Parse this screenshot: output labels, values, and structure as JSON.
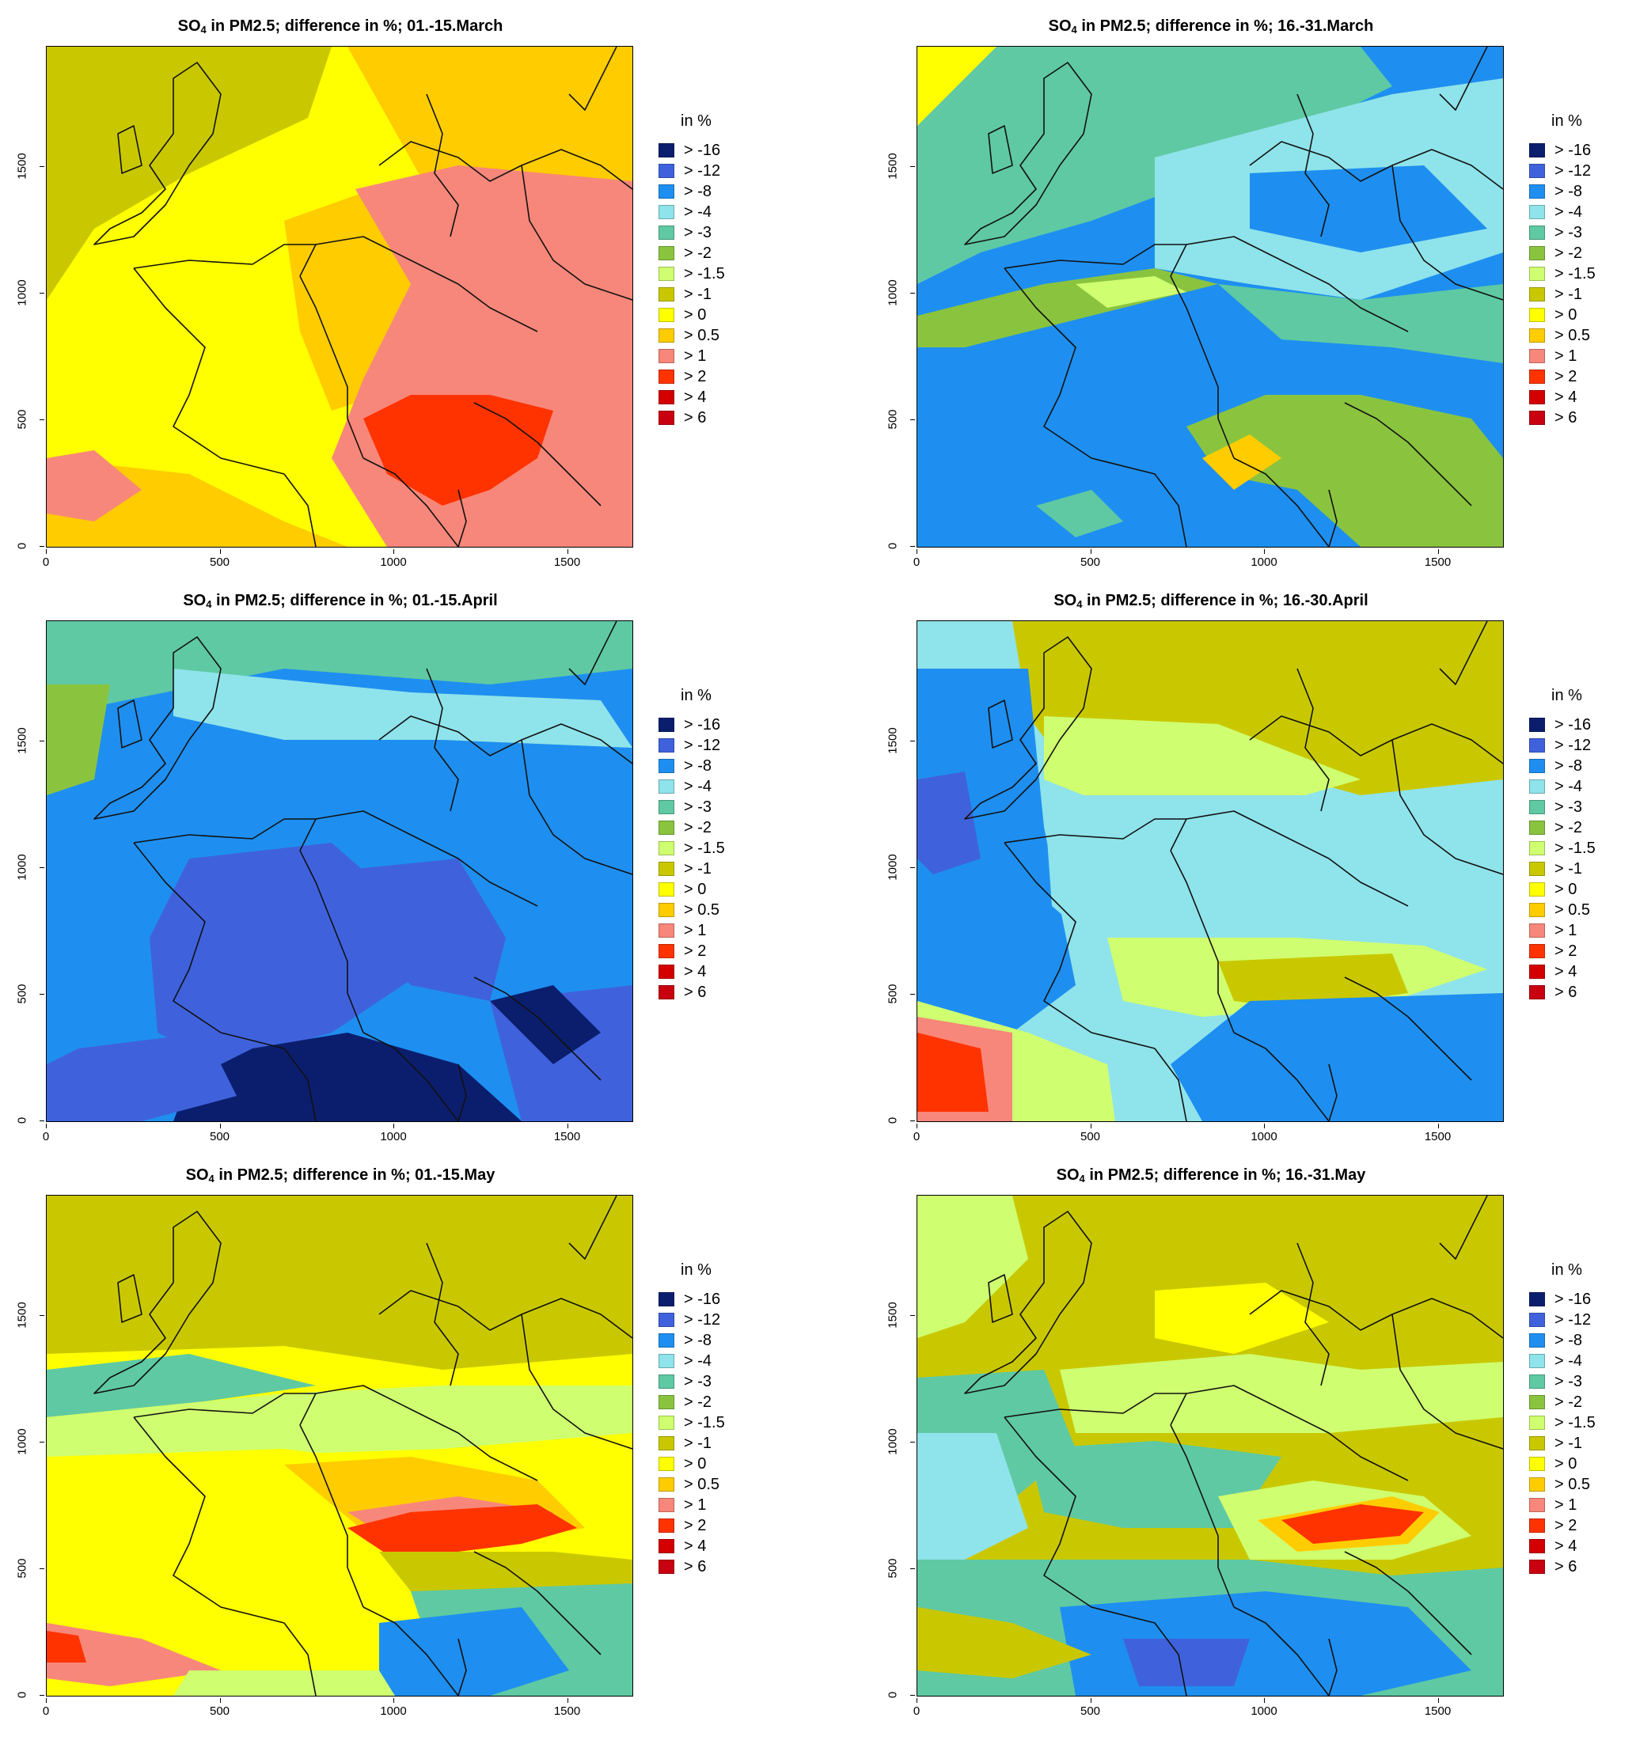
{
  "legend": {
    "title": "in %",
    "classes": [
      {
        "label": "> -16",
        "color": "#0b1e6e"
      },
      {
        "label": "> -12",
        "color": "#3f62dc"
      },
      {
        "label": "> -8",
        "color": "#1e8ff0"
      },
      {
        "label": "> -4",
        "color": "#8fe3ea"
      },
      {
        "label": "> -3",
        "color": "#5fc9a3"
      },
      {
        "label": "> -2",
        "color": "#8ac43f"
      },
      {
        "label": "> -1.5",
        "color": "#cfff70"
      },
      {
        "label": "> -1",
        "color": "#c9c800"
      },
      {
        "label": "> 0",
        "color": "#ffff00"
      },
      {
        "label": "> 0.5",
        "color": "#ffcc00"
      },
      {
        "label": "> 1",
        "color": "#f7877a"
      },
      {
        "label": "> 2",
        "color": "#ff3300"
      },
      {
        "label": "> 4",
        "color": "#d40000"
      },
      {
        "label": "> 6",
        "color": "#c80010"
      }
    ]
  },
  "axes": {
    "x_ticks": [
      "0",
      "500",
      "1000",
      "1500"
    ],
    "y_ticks": [
      "0",
      "500",
      "1000",
      "1500"
    ]
  },
  "panels": [
    {
      "title_prefix": "SO",
      "title_sub": "4",
      "title_rest": "  in PM2.5; difference in %; 01.-15.March",
      "base_color": "#ffff00",
      "dominant": "warm-yellow"
    },
    {
      "title_prefix": "SO",
      "title_sub": "4",
      "title_rest": "  in PM2.5; difference in %; 16.-31.March",
      "base_color": "#1e8ff0",
      "dominant": "blue-cyan"
    },
    {
      "title_prefix": "SO",
      "title_sub": "4",
      "title_rest": "  in PM2.5; difference in %; 01.-15.April",
      "base_color": "#1e8ff0",
      "dominant": "deep-blue"
    },
    {
      "title_prefix": "SO",
      "title_sub": "4",
      "title_rest": "  in PM2.5; difference in %; 16.-30.April",
      "base_color": "#8fe3ea",
      "dominant": "cyan-olive"
    },
    {
      "title_prefix": "SO",
      "title_sub": "4",
      "title_rest": "  in PM2.5; difference in %; 01.-15.May",
      "base_color": "#ffff00",
      "dominant": "yellow-olive"
    },
    {
      "title_prefix": "SO",
      "title_sub": "4",
      "title_rest": "  in PM2.5; difference in %; 16.-31.May",
      "base_color": "#c9c800",
      "dominant": "olive-cyan"
    }
  ]
}
